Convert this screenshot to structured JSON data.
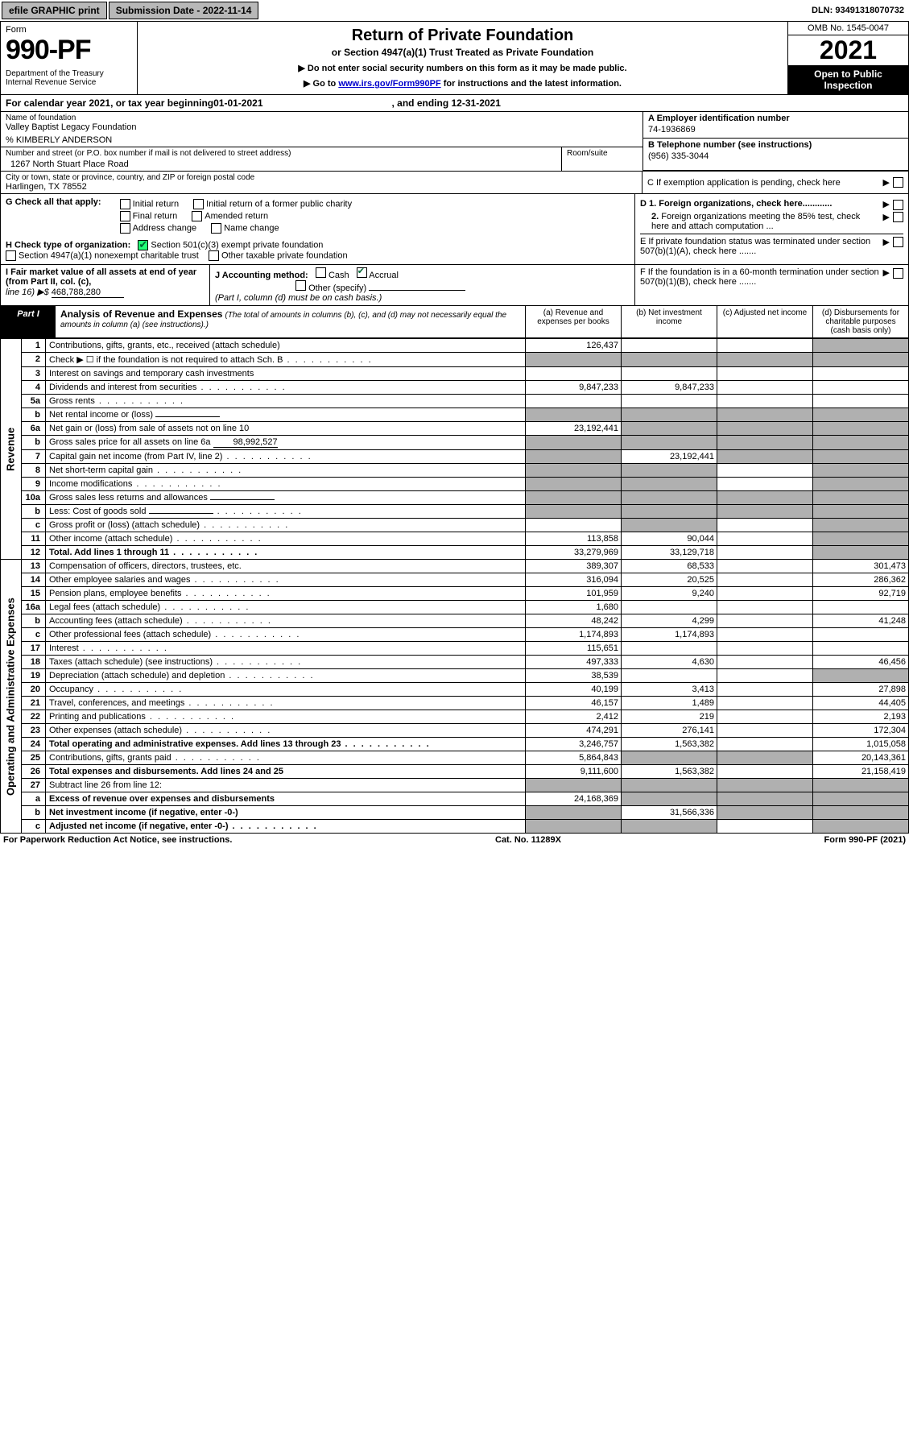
{
  "colors": {
    "link": "#0000cc",
    "black": "#000000",
    "shade": "#b0b0b0",
    "topbtn": "#b8b8b8",
    "check": "#22cc55"
  },
  "top": {
    "efile": "efile GRAPHIC print",
    "subdate_lbl": "Submission Date - ",
    "subdate": "2022-11-14",
    "dln_lbl": "DLN: ",
    "dln": "93491318070732"
  },
  "hdr": {
    "form": "Form",
    "num": "990-PF",
    "dept": "Department of the Treasury\nInternal Revenue Service",
    "title": "Return of Private Foundation",
    "sub": "or Section 4947(a)(1) Trust Treated as Private Foundation",
    "note1": "▶ Do not enter social security numbers on this form as it may be made public.",
    "note2a": "▶ Go to ",
    "note2link": "www.irs.gov/Form990PF",
    "note2b": " for instructions and the latest information.",
    "omb": "OMB No. 1545-0047",
    "year": "2021",
    "open": "Open to Public Inspection"
  },
  "cal": {
    "lead": "For calendar year 2021, or tax year beginning ",
    "begin": "01-01-2021",
    "mid": ", and ending ",
    "end": "12-31-2021"
  },
  "info": {
    "name_lbl": "Name of foundation",
    "name": "Valley Baptist Legacy Foundation",
    "care": "% KIMBERLY ANDERSON",
    "addr_lbl": "Number and street (or P.O. box number if mail is not delivered to street address)",
    "addr": "1267 North Stuart Place Road",
    "room_lbl": "Room/suite",
    "city_lbl": "City or town, state or province, country, and ZIP or foreign postal code",
    "city": "Harlingen, TX  78552",
    "A_lbl": "A Employer identification number",
    "A": "74-1936869",
    "B_lbl": "B Telephone number (see instructions)",
    "B": "(956) 335-3044",
    "C": "C If exemption application is pending, check here"
  },
  "G": {
    "lbl": "G Check all that apply:",
    "opts": [
      "Initial return",
      "Final return",
      "Address change",
      "Initial return of a former public charity",
      "Amended return",
      "Name change"
    ]
  },
  "H": {
    "lbl": "H Check type of organization:",
    "o1": "Section 501(c)(3) exempt private foundation",
    "o2": "Section 4947(a)(1) nonexempt charitable trust",
    "o3": "Other taxable private foundation"
  },
  "D": {
    "d1": "D 1. Foreign organizations, check here............",
    "d2": "2. Foreign organizations meeting the 85% test, check here and attach computation ..."
  },
  "E": "E  If private foundation status was terminated under section 507(b)(1)(A), check here .......",
  "I": {
    "lbl": "I Fair market value of all assets at end of year (from Part II, col. (c),",
    "line": "line 16) ▶$",
    "val": "468,788,280"
  },
  "J": {
    "lbl": "J Accounting method:",
    "cash": "Cash",
    "accr": "Accrual",
    "other": "Other (specify)",
    "note": "(Part I, column (d) must be on cash basis.)"
  },
  "F": "F  If the foundation is in a 60-month termination under section 507(b)(1)(B), check here .......",
  "part1": {
    "tag": "Part I",
    "title": "Analysis of Revenue and Expenses",
    "sub": "(The total of amounts in columns (b), (c), and (d) may not necessarily equal the amounts in column (a) (see instructions).)",
    "cols": {
      "a": "(a) Revenue and expenses per books",
      "b": "(b) Net investment income",
      "c": "(c) Adjusted net income",
      "d": "(d) Disbursements for charitable purposes (cash basis only)"
    }
  },
  "sides": {
    "rev": "Revenue",
    "oae": "Operating and Administrative Expenses"
  },
  "rows": [
    {
      "n": "1",
      "desc": "Contributions, gifts, grants, etc., received (attach schedule)",
      "a": "126,437",
      "d_shade": true,
      "bold": false
    },
    {
      "n": "2",
      "desc": "Check ▶ ☐ if the foundation is not required to attach Sch. B",
      "dots": true,
      "allshade": [
        "a",
        "b",
        "c",
        "d"
      ]
    },
    {
      "n": "3",
      "desc": "Interest on savings and temporary cash investments"
    },
    {
      "n": "4",
      "desc": "Dividends and interest from securities",
      "dots": true,
      "a": "9,847,233",
      "b": "9,847,233"
    },
    {
      "n": "5a",
      "desc": "Gross rents",
      "dots": true
    },
    {
      "n": "b",
      "desc": "Net rental income or (loss)",
      "underline": true,
      "allshade": [
        "a",
        "b",
        "c",
        "d"
      ]
    },
    {
      "n": "6a",
      "desc": "Net gain or (loss) from sale of assets not on line 10",
      "a": "23,192,441",
      "shadecols": [
        "b",
        "c"
      ],
      "d_shade": true
    },
    {
      "n": "b",
      "desc": "Gross sales price for all assets on line 6a",
      "trail_under": "98,992,527",
      "allshade": [
        "a",
        "b",
        "c",
        "d"
      ]
    },
    {
      "n": "7",
      "desc": "Capital gain net income (from Part IV, line 2)",
      "dots": true,
      "b": "23,192,441",
      "shadecols": [
        "a",
        "c"
      ],
      "d_shade": true
    },
    {
      "n": "8",
      "desc": "Net short-term capital gain",
      "dots": true,
      "shadecols": [
        "a",
        "b"
      ],
      "d_shade": true
    },
    {
      "n": "9",
      "desc": "Income modifications",
      "dots": true,
      "shadecols": [
        "a",
        "b"
      ],
      "d_shade": true
    },
    {
      "n": "10a",
      "desc": "Gross sales less returns and allowances",
      "underline": true,
      "allshade": [
        "a",
        "b",
        "c",
        "d"
      ]
    },
    {
      "n": "b",
      "desc": "Less: Cost of goods sold",
      "dots": true,
      "underline": true,
      "allshade": [
        "a",
        "b",
        "c",
        "d"
      ]
    },
    {
      "n": "c",
      "desc": "Gross profit or (loss) (attach schedule)",
      "dots": true,
      "shadecols": [
        "b"
      ],
      "d_shade": true
    },
    {
      "n": "11",
      "desc": "Other income (attach schedule)",
      "dots": true,
      "a": "113,858",
      "b": "90,044",
      "d_shade": true
    },
    {
      "n": "12",
      "desc": "Total. Add lines 1 through 11",
      "dots": true,
      "bold": true,
      "a": "33,279,969",
      "b": "33,129,718",
      "d_shade": true
    }
  ],
  "rows2": [
    {
      "n": "13",
      "desc": "Compensation of officers, directors, trustees, etc.",
      "a": "389,307",
      "b": "68,533",
      "d": "301,473"
    },
    {
      "n": "14",
      "desc": "Other employee salaries and wages",
      "dots": true,
      "a": "316,094",
      "b": "20,525",
      "d": "286,362"
    },
    {
      "n": "15",
      "desc": "Pension plans, employee benefits",
      "dots": true,
      "a": "101,959",
      "b": "9,240",
      "d": "92,719"
    },
    {
      "n": "16a",
      "desc": "Legal fees (attach schedule)",
      "dots": true,
      "a": "1,680"
    },
    {
      "n": "b",
      "desc": "Accounting fees (attach schedule)",
      "dots": true,
      "a": "48,242",
      "b": "4,299",
      "d": "41,248"
    },
    {
      "n": "c",
      "desc": "Other professional fees (attach schedule)",
      "dots": true,
      "a": "1,174,893",
      "b": "1,174,893"
    },
    {
      "n": "17",
      "desc": "Interest",
      "dots": true,
      "a": "115,651"
    },
    {
      "n": "18",
      "desc": "Taxes (attach schedule) (see instructions)",
      "dots": true,
      "a": "497,333",
      "b": "4,630",
      "d": "46,456"
    },
    {
      "n": "19",
      "desc": "Depreciation (attach schedule) and depletion",
      "dots": true,
      "a": "38,539",
      "shadecols": [
        "d"
      ]
    },
    {
      "n": "20",
      "desc": "Occupancy",
      "dots": true,
      "a": "40,199",
      "b": "3,413",
      "d": "27,898"
    },
    {
      "n": "21",
      "desc": "Travel, conferences, and meetings",
      "dots": true,
      "a": "46,157",
      "b": "1,489",
      "d": "44,405"
    },
    {
      "n": "22",
      "desc": "Printing and publications",
      "dots": true,
      "a": "2,412",
      "b": "219",
      "d": "2,193"
    },
    {
      "n": "23",
      "desc": "Other expenses (attach schedule)",
      "dots": true,
      "a": "474,291",
      "b": "276,141",
      "d": "172,304"
    },
    {
      "n": "24",
      "desc": "Total operating and administrative expenses. Add lines 13 through 23",
      "dots": true,
      "bold": true,
      "a": "3,246,757",
      "b": "1,563,382",
      "d": "1,015,058"
    },
    {
      "n": "25",
      "desc": "Contributions, gifts, grants paid",
      "dots": true,
      "a": "5,864,843",
      "shadecols": [
        "b",
        "c"
      ],
      "d": "20,143,361"
    },
    {
      "n": "26",
      "desc": "Total expenses and disbursements. Add lines 24 and 25",
      "bold": true,
      "a": "9,111,600",
      "b": "1,563,382",
      "d": "21,158,419"
    }
  ],
  "rows3": [
    {
      "n": "27",
      "desc": "Subtract line 26 from line 12:",
      "allshade": [
        "a",
        "b",
        "c",
        "d"
      ]
    },
    {
      "n": "a",
      "desc": "Excess of revenue over expenses and disbursements",
      "bold": true,
      "a": "24,168,369",
      "shadecols": [
        "b",
        "c",
        "d"
      ]
    },
    {
      "n": "b",
      "desc": "Net investment income (if negative, enter -0-)",
      "bold": true,
      "b": "31,566,336",
      "shadecols": [
        "a",
        "c",
        "d"
      ]
    },
    {
      "n": "c",
      "desc": "Adjusted net income (if negative, enter -0-)",
      "dots": true,
      "bold": true,
      "shadecols": [
        "a",
        "b",
        "d"
      ]
    }
  ],
  "footer": {
    "left": "For Paperwork Reduction Act Notice, see instructions.",
    "mid": "Cat. No. 11289X",
    "right": "Form 990-PF (2021)"
  }
}
